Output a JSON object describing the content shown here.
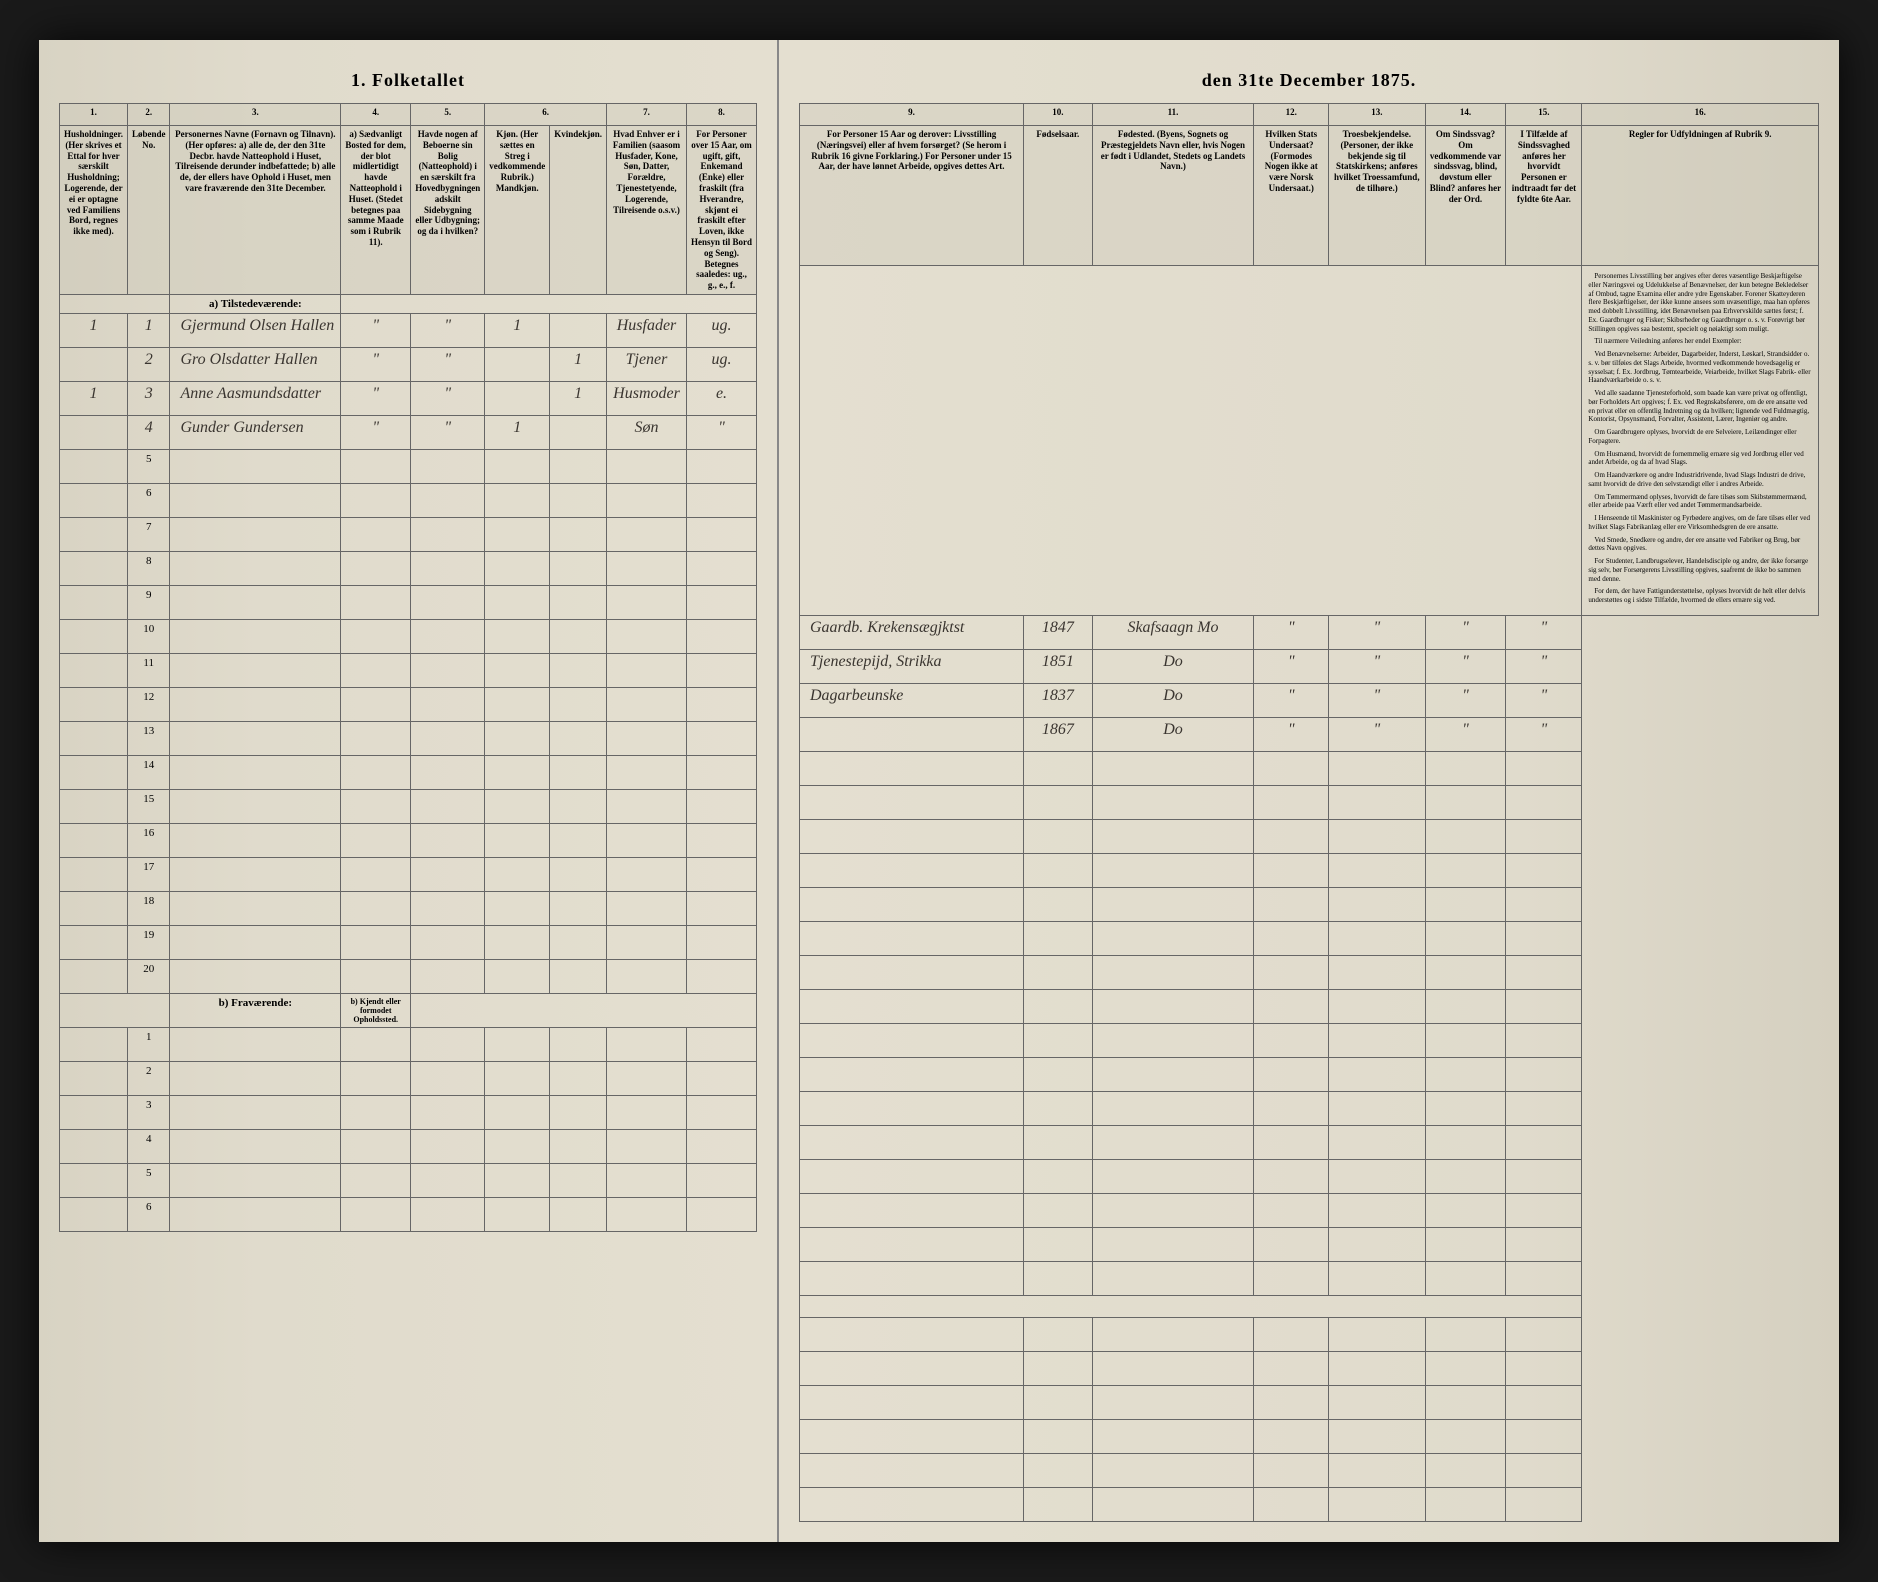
{
  "title_left": "1. Folketallet",
  "title_right": "den 31te December 1875.",
  "columns": {
    "c1": "1.",
    "c2": "2.",
    "c3": "3.",
    "c4": "4.",
    "c5": "5.",
    "c6": "6.",
    "c7": "7.",
    "c8": "8.",
    "c9": "9.",
    "c10": "10.",
    "c11": "11.",
    "c12": "12.",
    "c13": "13.",
    "c14": "14.",
    "c15": "15.",
    "c16": "16."
  },
  "headers": {
    "h1": "Husholdninger.\n(Her skrives et Ettal for hver særskilt Husholdning; Logerende, der ei er optagne ved Familiens Bord, regnes ikke med).",
    "h2": "Løbende No.",
    "h3": "Personernes Navne (Fornavn og Tilnavn).\n(Her opføres:\na) alle de, der den 31te Decbr. havde Natteophold i Huset, Tilreisende derunder indbefattede;\nb) alle de, der ellers have Ophold i Huset, men vare fraværende den 31te December.",
    "h4": "a) Sædvanligt Bosted for dem, der blot midlertidigt havde Natteophold i Huset.\n(Stedet betegnes paa samme Maade som i Rubrik 11).",
    "h5": "Havde nogen af Beboerne sin Bolig (Natteophold) i en særskilt fra Hovedbygningen adskilt Sidebygning eller Udbygning; og da i hvilken?",
    "h6a": "Kjøn.\n(Her sættes en Streg i vedkommende Rubrik.)\nMandkjøn.",
    "h6b": "Kvindekjøn.",
    "h7": "Hvad Enhver er i Familien\n(saasom Husfader, Kone, Søn, Datter, Forældre, Tjenestetyende, Logerende, Tilreisende o.s.v.)",
    "h8": "For Personer over 15 Aar, om ugift, gift, Enkemand (Enke) eller fraskilt (fra Hverandre, skjønt ei fraskilt efter Loven, ikke Hensyn til Bord og Seng).\nBetegnes saaledes: ug., g., e., f.",
    "h9": "For Personer 15 Aar og derover: Livsstilling (Næringsvei) eller af hvem forsørget? (Se herom i Rubrik 16 givne Forklaring.)\nFor Personer under 15 Aar, der have lønnet Arbeide, opgives dettes Art.",
    "h10": "Fødselsaar.",
    "h11": "Fødested.\n(Byens, Sognets og Præstegjeldets Navn eller, hvis Nogen er født i Udlandet, Stedets og Landets Navn.)",
    "h12": "Hvilken Stats Undersaat?\n(Formodes Nogen ikke at være Norsk Undersaat.)",
    "h13": "Troesbekjendelse.\n(Personer, der ikke bekjende sig til Statskirkens; anføres hvilket Troessamfund, de tilhøre.)",
    "h14": "Om Sindssvag? Om vedkommende var sindssvag, blind, døvstum eller Blind? anføres her der Ord.",
    "h15": "I Tilfælde af Sindssvaghed anføres her hvorvidt Personen er indtraadt før det fyldte 6te Aar.",
    "h16": "Regler for Udfyldningen af\nRubrik 9."
  },
  "sections": {
    "present": "a) Tilstedeværende:",
    "absent": "b) Fraværende:",
    "absent_note": "b) Kjendt eller formodet Opholdssted."
  },
  "rows": [
    {
      "hh": "1",
      "num": "1",
      "name": "Gjermund Olsen Hallen",
      "c4": "\"",
      "c5": "\"",
      "sex_m": "1",
      "sex_f": "",
      "role": "Husfader",
      "marital": "ug.",
      "occupation": "Gaardb. Krekensægjktst",
      "year": "1847",
      "place": "Skafsaagn Mo",
      "c12": "\"",
      "c13": "\"",
      "c14": "\"",
      "c15": "\""
    },
    {
      "hh": "",
      "num": "2",
      "name": "Gro Olsdatter Hallen",
      "c4": "\"",
      "c5": "\"",
      "sex_m": "",
      "sex_f": "1",
      "role": "Tjener",
      "marital": "ug.",
      "occupation": "Tjenestepijd, Strikka",
      "year": "1851",
      "place": "Do",
      "c12": "\"",
      "c13": "\"",
      "c14": "\"",
      "c15": "\""
    },
    {
      "hh": "1",
      "num": "3",
      "name": "Anne Aasmundsdatter",
      "c4": "\"",
      "c5": "\"",
      "sex_m": "",
      "sex_f": "1",
      "role": "Husmoder",
      "marital": "e.",
      "occupation": "Dagarbeunske",
      "year": "1837",
      "place": "Do",
      "c12": "\"",
      "c13": "\"",
      "c14": "\"",
      "c15": "\""
    },
    {
      "hh": "",
      "num": "4",
      "name": "Gunder Gundersen",
      "c4": "\"",
      "c5": "\"",
      "sex_m": "1",
      "sex_f": "",
      "role": "Søn",
      "marital": "\"",
      "occupation": "",
      "year": "1867",
      "place": "Do",
      "c12": "\"",
      "c13": "\"",
      "c14": "\"",
      "c15": "\""
    }
  ],
  "empty_present_count": 16,
  "empty_absent_count": 6,
  "rules_text": [
    "Personernes Livsstilling bør angives efter deres væsentlige Beskjæftigelse eller Næringsvei og Udelukkelse af Benævnelser, der kun betegne Bekledelser af Ombud, tagne Examina eller andre ydre Egenskaber. Forener Skatteyderen flere Beskjæftigelser, der ikke kunne ansees som uvæsentlige, maa han opføres med dobbelt Livsstilling, idet Benævnelsen paa Erhvervskilde sættes først; f. Ex. Gaardbruger og Fisker; Skibsrheder og Gaardbruger o. s. v. Forøvrigt bør Stillingen opgives saa bestemt, specielt og nøiaktigt som muligt.",
    "Til nærmere Veiledning anføres her endel Exempler:",
    "Ved Benævnelserne: Arbeider, Dagarbeider, Inderst, Løskarl, Strandsidder o. s. v. bør tilføies det Slags Arbeide, hvormed vedkommende hovedsagelig er sysselsat; f. Ex. Jordbrug, Tømtearbeide, Veiarbeide, hvilket Slags Fabrik- eller Haandværkarbeide o. s. v.",
    "Ved alle saadanne Tjenesteforhold, som baade kan være privat og offentligt, bør Forholdets Art opgives; f. Ex. ved Regnskabsførere, om de ere ansatte ved en privat eller en offentlig Indretning og da hvilken; lignende ved Fuldmægtig, Kontorist, Opsynsmand, Forvalter, Assistent, Lærer, Ingeniør og andre.",
    "Om Gaardbrugere oplyses, hvorvidt de ere Selveiere, Leilændinger eller Forpagtere.",
    "Om Husmænd, hvorvidt de fornemmelig ernære sig ved Jordbrug eller ved andet Arbeide, og da af hvad Slags.",
    "Om Haandværkere og andre Industridrivende, hvad Slags Industri de drive, samt hvorvidt de drive den selvstændigt eller i andres Arbeide.",
    "Om Tømmermænd oplyses, hvorvidt de fare tilsøs som Skibstømmermænd, eller arbeide paa Værft eller ved andet Tømmermandsarbeide.",
    "I Henseende til Maskinister og Fyrbødere angives, om de fare tilsøs eller ved hvilket Slags Fabrikanlæg eller ere Virksomhedsgren de ere ansatte.",
    "Ved Smede, Snedkere og andre, der ere ansatte ved Fabriker og Brug, bør dettes Navn opgives.",
    "For Studenter, Landbrugselever, Handelsdisciple og andre, der ikke forsørge sig selv, bør Forsørgerens Livsstilling opgives, saafremt de ikke bo sammen med denne.",
    "For dem, der have Fattigunderstøttelse, oplyses hvorvidt de helt eller delvis understøttes og i sidste Tilfælde, hvormed de ellers ernære sig ved."
  ],
  "colors": {
    "paper": "#e0dbcc",
    "ink": "#3a3530",
    "border": "#666"
  }
}
